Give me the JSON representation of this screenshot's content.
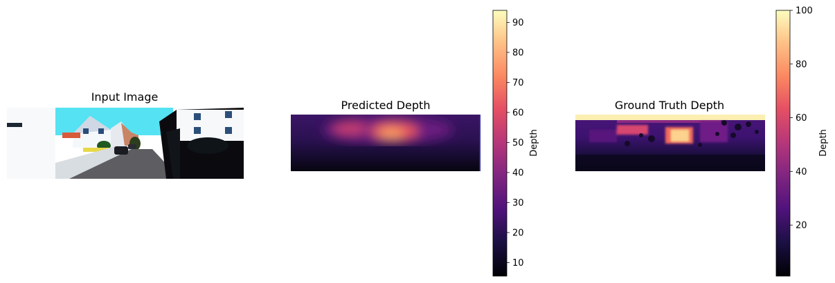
{
  "figure": {
    "panels": [
      {
        "id": "input",
        "title": "Input Image"
      },
      {
        "id": "predicted",
        "title": "Predicted Depth"
      },
      {
        "id": "ground_truth",
        "title": "Ground Truth Depth"
      }
    ]
  },
  "chart_data": [
    {
      "type": "image",
      "title": "Input Image",
      "content": "street scene photo"
    },
    {
      "type": "heatmap",
      "title": "Predicted Depth",
      "colormap": "magma",
      "colorbar": {
        "label": "Depth",
        "range": [
          5.5,
          94
        ],
        "ticks": [
          10,
          20,
          30,
          40,
          50,
          60,
          70,
          80,
          90
        ]
      }
    },
    {
      "type": "heatmap",
      "title": "Ground Truth Depth",
      "colormap": "magma",
      "colorbar": {
        "label": "Depth",
        "range": [
          1,
          100
        ],
        "ticks": [
          20,
          40,
          60,
          80,
          100
        ]
      }
    }
  ]
}
